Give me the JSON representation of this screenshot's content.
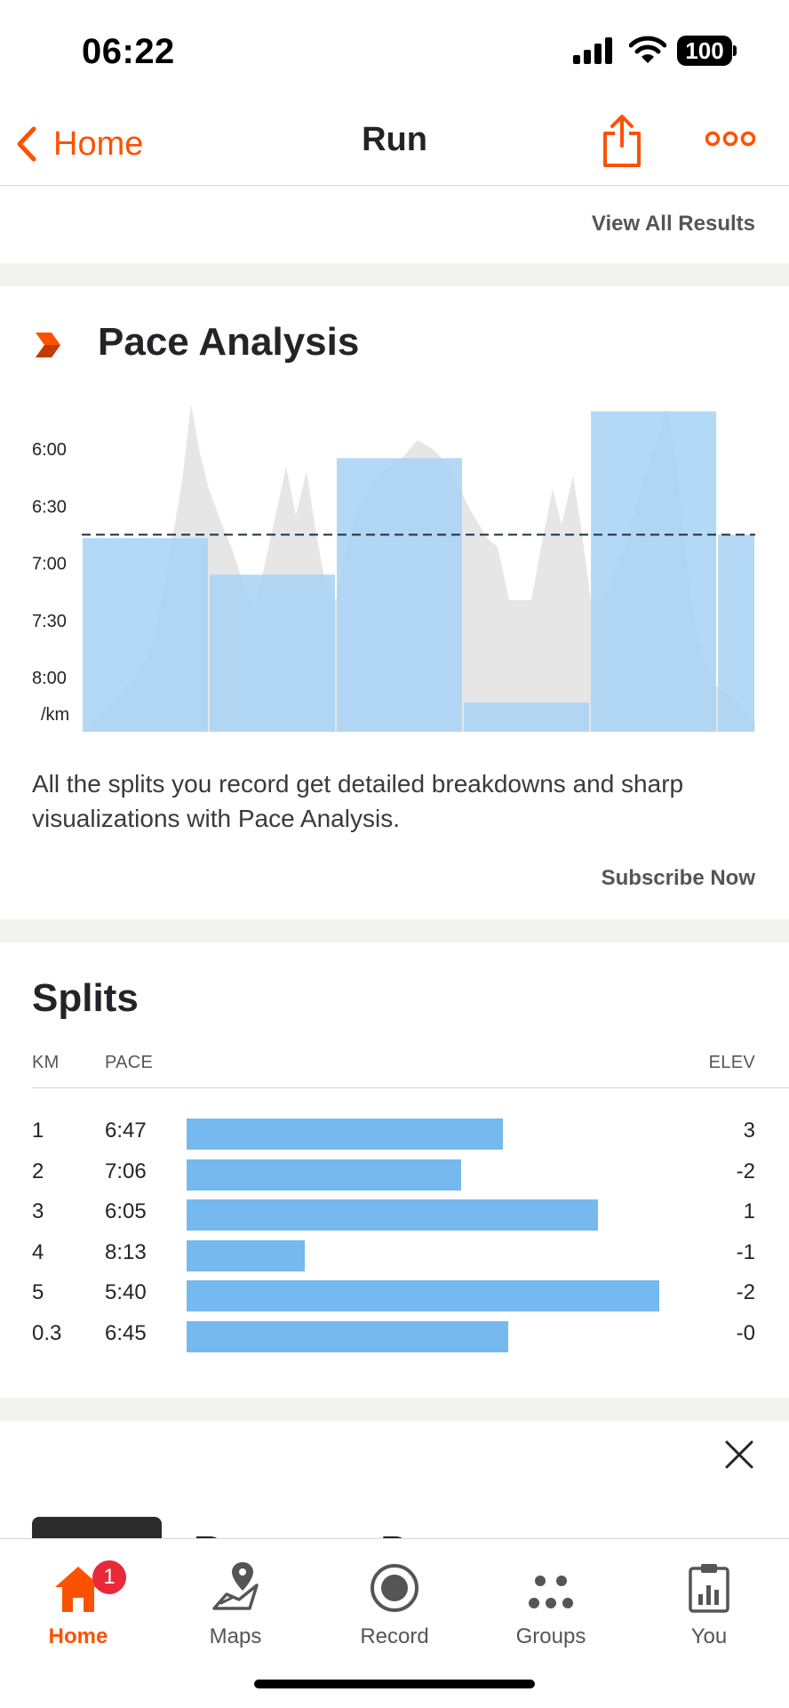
{
  "status_bar": {
    "time": "06:22",
    "battery": "100"
  },
  "nav": {
    "back_label": "Home",
    "title": "Run"
  },
  "results": {
    "view_all_label": "View All Results"
  },
  "pace_analysis": {
    "title": "Pace Analysis",
    "description": "All the splits you record get detailed breakdowns and sharp visualizations with Pace Analysis.",
    "subscribe_label": "Subscribe Now"
  },
  "chart_data": {
    "type": "bar",
    "y_tick_labels": [
      "6:00",
      "6:30",
      "7:00",
      "7:30",
      "8:00",
      "/km"
    ],
    "y_ticks_min_per_km": [
      6.0,
      6.5,
      7.0,
      7.5,
      8.0
    ],
    "y_axis_inverted": true,
    "splits_km": [
      1,
      1,
      1,
      1,
      1,
      0.3
    ],
    "pace_min_per_km": [
      6.78,
      7.1,
      6.08,
      8.22,
      5.67,
      6.75
    ],
    "average_pace_min_per_km": 6.75,
    "colors": {
      "bars": "#a9d4f6",
      "profile": "#e6e6e6",
      "average_line": "#1c2e45"
    }
  },
  "splits": {
    "title": "Splits",
    "headers": {
      "km": "KM",
      "pace": "PACE",
      "elev": "ELEV"
    },
    "rows": [
      {
        "km": "1",
        "pace": "6:47",
        "elev": "3",
        "bar_fraction": 0.67
      },
      {
        "km": "2",
        "pace": "7:06",
        "elev": "-2",
        "bar_fraction": 0.58
      },
      {
        "km": "3",
        "pace": "6:05",
        "elev": "1",
        "bar_fraction": 0.87
      },
      {
        "km": "4",
        "pace": "8:13",
        "elev": "-1",
        "bar_fraction": 0.25
      },
      {
        "km": "5",
        "pace": "5:40",
        "elev": "-2",
        "bar_fraction": 1.0
      },
      {
        "km": "0.3",
        "pace": "6:45",
        "elev": "-0",
        "bar_fraction": 0.68
      }
    ],
    "bar_color": "#76b9ee"
  },
  "promo": {
    "title": "Recovery Programs"
  },
  "tabs": [
    {
      "label": "Home",
      "icon": "home-icon",
      "active": true,
      "badge": "1"
    },
    {
      "label": "Maps",
      "icon": "map-pin-icon"
    },
    {
      "label": "Record",
      "icon": "record-icon"
    },
    {
      "label": "Groups",
      "icon": "groups-icon"
    },
    {
      "label": "You",
      "icon": "clipboard-chart-icon"
    }
  ],
  "colors": {
    "accent": "#fc5200",
    "badge": "#e8293a"
  }
}
